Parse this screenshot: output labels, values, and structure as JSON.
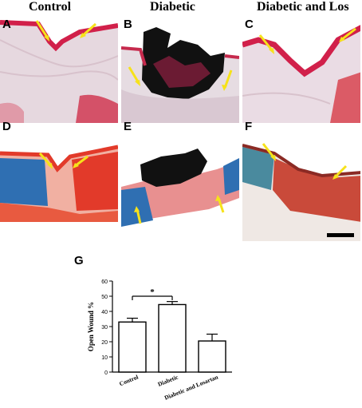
{
  "columns": {
    "col1": "Control",
    "col2": "Diabetic",
    "col3": "Diabetic and Los"
  },
  "panel_labels": {
    "A": "A",
    "B": "B",
    "C": "C",
    "D": "D",
    "E": "E",
    "F": "F",
    "G": "G"
  },
  "colors": {
    "arrow": "#f6e21a",
    "he_tissue": "#c9b2bf",
    "epidermis": "#d1204a",
    "collagen_blue": "#2f6fb2",
    "muscle_red": "#e23a2a",
    "scab": "#111111"
  },
  "chart_data": {
    "type": "bar",
    "categories": [
      "Control",
      "Diabetic",
      "Diabetic and Losartan"
    ],
    "values": [
      33,
      44.5,
      20.5
    ],
    "errors": [
      2.5,
      2,
      4.5
    ],
    "ylabel": "Open Wound %",
    "ylim": [
      0,
      60
    ],
    "yticks": [
      "0",
      "10",
      "20",
      "30",
      "40",
      "50",
      "60"
    ],
    "significance": "*",
    "grid": false
  }
}
